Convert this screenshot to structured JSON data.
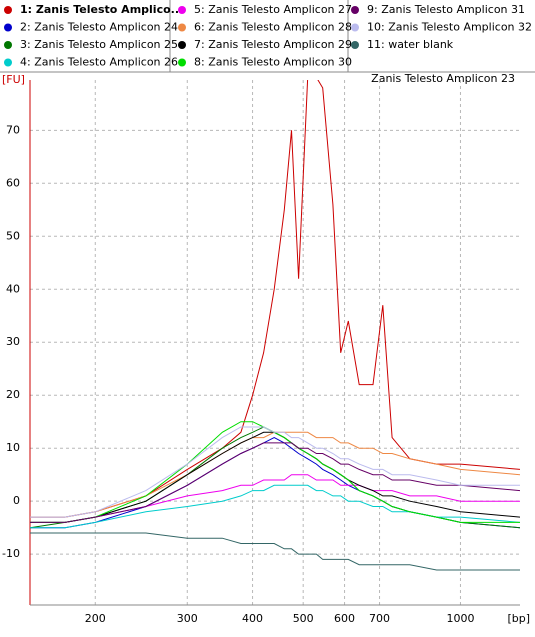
{
  "chart_data": {
    "type": "line",
    "title": "Zanis Telesto Amplicon 23",
    "y_label": "[FU]",
    "x_label": "[bp]",
    "x": [
      150,
      175,
      200,
      250,
      300,
      350,
      380,
      400,
      420,
      440,
      460,
      475,
      490,
      510,
      530,
      545,
      570,
      590,
      610,
      640,
      680,
      710,
      740,
      800,
      900,
      1000,
      1300
    ],
    "xlim": [
      150,
      1300
    ],
    "xticks": [
      200,
      300,
      400,
      500,
      600,
      700,
      1000
    ],
    "xscale": "log",
    "ylim": [
      -19.6,
      79.5
    ],
    "yticks": [
      -10,
      0,
      10,
      20,
      30,
      40,
      50,
      60,
      70
    ],
    "grid": true,
    "series": [
      {
        "name": "1: Zanis Telesto Amplico...",
        "color": "#cc0000",
        "values": [
          -3,
          -3,
          -2,
          1,
          6,
          10,
          13,
          20,
          28,
          40,
          55,
          70,
          42,
          80,
          80,
          78,
          56,
          28,
          34,
          22,
          22,
          37,
          12,
          8,
          7,
          7,
          6
        ]
      },
      {
        "name": "2: Zanis Telesto Amplicon 24",
        "color": "#0000cc",
        "values": [
          -5,
          -5,
          -4,
          -1,
          3,
          7,
          9,
          10,
          11,
          12,
          11,
          10,
          9,
          8,
          7,
          6,
          5,
          4,
          3,
          2,
          1,
          0,
          -1,
          -2,
          -3,
          -4,
          -5
        ]
      },
      {
        "name": "3: Zanis Telesto Amplicon 25",
        "color": "#007700",
        "values": [
          -5,
          -4,
          -3,
          0,
          5,
          10,
          12,
          13,
          14,
          13,
          12,
          11,
          10,
          9,
          8,
          7,
          6,
          5,
          4,
          2,
          1,
          0,
          -1,
          -2,
          -3,
          -4,
          -5
        ]
      },
      {
        "name": "4: Zanis Telesto Amplicon 26",
        "color": "#00cccc",
        "values": [
          -5,
          -5,
          -4,
          -2,
          -1,
          0,
          1,
          2,
          2,
          3,
          3,
          3,
          3,
          3,
          2,
          2,
          1,
          1,
          0,
          0,
          -1,
          -1,
          -2,
          -2,
          -3,
          -3,
          -4
        ]
      },
      {
        "name": "5: Zanis Telesto Amplicon 27",
        "color": "#ee00ee",
        "values": [
          -4,
          -4,
          -3,
          -1,
          1,
          2,
          3,
          3,
          4,
          4,
          4,
          5,
          5,
          5,
          4,
          4,
          4,
          3,
          3,
          3,
          2,
          2,
          2,
          1,
          1,
          0,
          0
        ]
      },
      {
        "name": "6: Zanis Telesto Amplicon 28",
        "color": "#ee8844",
        "values": [
          -3,
          -3,
          -2,
          1,
          5,
          9,
          11,
          12,
          12,
          13,
          13,
          13,
          13,
          13,
          12,
          12,
          12,
          11,
          11,
          10,
          10,
          9,
          9,
          8,
          7,
          6,
          5
        ]
      },
      {
        "name": "7: Zanis Telesto Amplicon 29",
        "color": "#000000",
        "values": [
          -4,
          -4,
          -3,
          0,
          5,
          9,
          11,
          12,
          13,
          13,
          12,
          11,
          10,
          9,
          8,
          7,
          6,
          5,
          4,
          3,
          2,
          1,
          1,
          0,
          -1,
          -2,
          -3
        ]
      },
      {
        "name": "8: Zanis Telesto Amplicon 30",
        "color": "#00dd00",
        "values": [
          -4,
          -4,
          -3,
          1,
          7,
          13,
          15,
          15,
          14,
          13,
          12,
          11,
          10,
          9,
          8,
          7,
          6,
          5,
          4,
          2,
          1,
          0,
          -1,
          -2,
          -3,
          -4,
          -4
        ]
      },
      {
        "name": "9: Zanis Telesto Amplicon 31",
        "color": "#660066",
        "values": [
          -4,
          -4,
          -3,
          -1,
          3,
          7,
          9,
          10,
          11,
          11,
          11,
          11,
          10,
          10,
          9,
          9,
          8,
          7,
          7,
          6,
          5,
          5,
          4,
          4,
          3,
          3,
          2
        ]
      },
      {
        "name": "10: Zanis Telesto Amplicon 32",
        "color": "#bbbbee",
        "values": [
          -3,
          -3,
          -2,
          2,
          7,
          12,
          14,
          14,
          14,
          13,
          13,
          12,
          12,
          11,
          10,
          10,
          9,
          8,
          8,
          7,
          6,
          6,
          5,
          5,
          4,
          3,
          3
        ]
      },
      {
        "name": "11: water blank",
        "color": "#336666",
        "values": [
          -6,
          -6,
          -6,
          -6,
          -7,
          -7,
          -8,
          -8,
          -8,
          -8,
          -9,
          -9,
          -10,
          -10,
          -10,
          -11,
          -11,
          -11,
          -11,
          -12,
          -12,
          -12,
          -12,
          -12,
          -13,
          -13,
          -13
        ]
      }
    ]
  }
}
